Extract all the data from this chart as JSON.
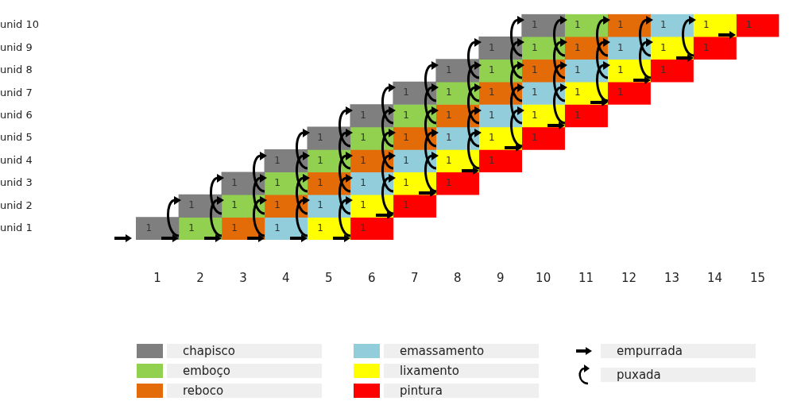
{
  "chart_data": {
    "type": "bar",
    "orientation": "horizontal",
    "categories": [
      "unid 10",
      "unid 9",
      "unid 8",
      "unid 7",
      "unid 6",
      "unid 5",
      "unid 4",
      "unid 3",
      "unid 2",
      "unid 1"
    ],
    "series": [
      {
        "name": "chapisco",
        "color": "#7f7f7f",
        "base": [
          9.5,
          8.5,
          7.5,
          6.5,
          5.5,
          4.5,
          3.5,
          2.5,
          1.5,
          0.5
        ],
        "values": [
          1,
          1,
          1,
          1,
          1,
          1,
          1,
          1,
          1,
          1
        ]
      },
      {
        "name": "emboço",
        "color": "#92d050",
        "base": [
          10.5,
          9.5,
          8.5,
          7.5,
          6.5,
          5.5,
          4.5,
          3.5,
          2.5,
          1.5
        ],
        "values": [
          1,
          1,
          1,
          1,
          1,
          1,
          1,
          1,
          1,
          1
        ]
      },
      {
        "name": "reboco",
        "color": "#e36c09",
        "base": [
          11.5,
          10.5,
          9.5,
          8.5,
          7.5,
          6.5,
          5.5,
          4.5,
          3.5,
          2.5
        ],
        "values": [
          1,
          1,
          1,
          1,
          1,
          1,
          1,
          1,
          1,
          1
        ]
      },
      {
        "name": "emassamento",
        "color": "#92cddc",
        "base": [
          12.5,
          11.5,
          10.5,
          9.5,
          8.5,
          7.5,
          6.5,
          5.5,
          4.5,
          3.5
        ],
        "values": [
          1,
          1,
          1,
          1,
          1,
          1,
          1,
          1,
          1,
          1
        ]
      },
      {
        "name": "lixamento",
        "color": "#ffff00",
        "base": [
          13.5,
          12.5,
          11.5,
          10.5,
          9.5,
          8.5,
          7.5,
          6.5,
          5.5,
          4.5
        ],
        "values": [
          1,
          1,
          1,
          1,
          1,
          1,
          1,
          1,
          1,
          1
        ]
      },
      {
        "name": "pintura",
        "color": "#ff0000",
        "base": [
          14.5,
          13.5,
          12.5,
          11.5,
          10.5,
          9.5,
          8.5,
          7.5,
          6.5,
          5.5
        ],
        "values": [
          1,
          1,
          1,
          1,
          1,
          1,
          1,
          1,
          1,
          1
        ]
      }
    ],
    "xlim": [
      0.5,
      15.5
    ],
    "xticks": [
      1,
      2,
      3,
      4,
      5,
      6,
      7,
      8,
      9,
      10,
      11,
      12,
      13,
      14,
      15
    ],
    "data_labels": true,
    "grid": false,
    "legend": "bottom",
    "annotations": [
      "empurrada",
      "puxada"
    ]
  }
}
